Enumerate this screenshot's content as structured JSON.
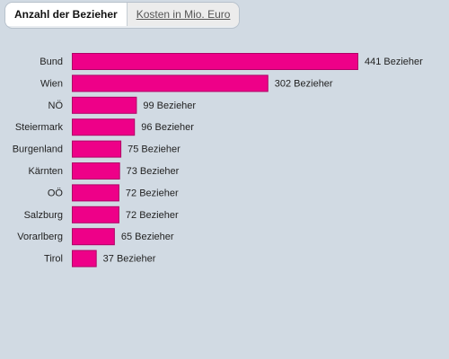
{
  "tabs": {
    "active_label": "Anzahl der Bezieher",
    "other_label": "Kosten in Mio. Euro"
  },
  "chart_data": {
    "type": "bar",
    "orientation": "horizontal",
    "categories": [
      "Bund",
      "Wien",
      "NÖ",
      "Steiermark",
      "Burgenland",
      "Kärnten",
      "OÖ",
      "Salzburg",
      "Vorarlberg",
      "Tirol"
    ],
    "values": [
      441,
      302,
      99,
      96,
      75,
      73,
      72,
      72,
      65,
      37
    ],
    "value_suffix": " Bezieher",
    "bar_color": "#ee0088",
    "bar_border_color": "#b00066"
  }
}
